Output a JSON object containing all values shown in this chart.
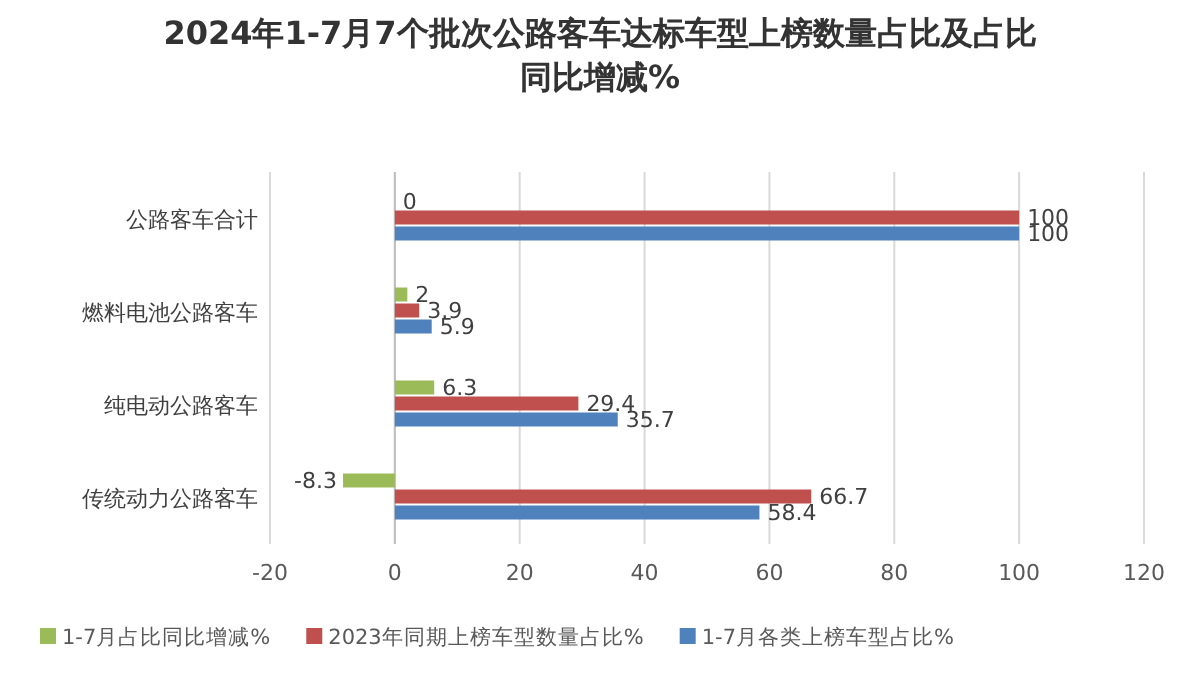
{
  "chart_data": {
    "type": "bar",
    "orientation": "horizontal",
    "title": "2024年1-7月7个批次公路客车达标车型上榜数量占比及占比同比增减%",
    "categories": [
      "公路客车合计",
      "燃料电池公路客车",
      "纯电动公路客车",
      "传统动力公路客车"
    ],
    "series": [
      {
        "name": "1-7月占比同比增减%",
        "color": "#9bbb59",
        "values": [
          0,
          2,
          6.3,
          -8.3
        ]
      },
      {
        "name": "2023年同期上榜车型数量占比%",
        "color": "#c0504d",
        "values": [
          100,
          3.9,
          29.4,
          66.7
        ]
      },
      {
        "name": "1-7月各类上榜车型占比%",
        "color": "#4f81bd",
        "values": [
          100,
          5.9,
          35.7,
          58.4
        ]
      }
    ],
    "xlim": [
      -20,
      120
    ],
    "xticks": [
      -20,
      0,
      20,
      40,
      60,
      80,
      100,
      120
    ],
    "data_labels": true,
    "grid": "x",
    "legend": "bottom"
  }
}
